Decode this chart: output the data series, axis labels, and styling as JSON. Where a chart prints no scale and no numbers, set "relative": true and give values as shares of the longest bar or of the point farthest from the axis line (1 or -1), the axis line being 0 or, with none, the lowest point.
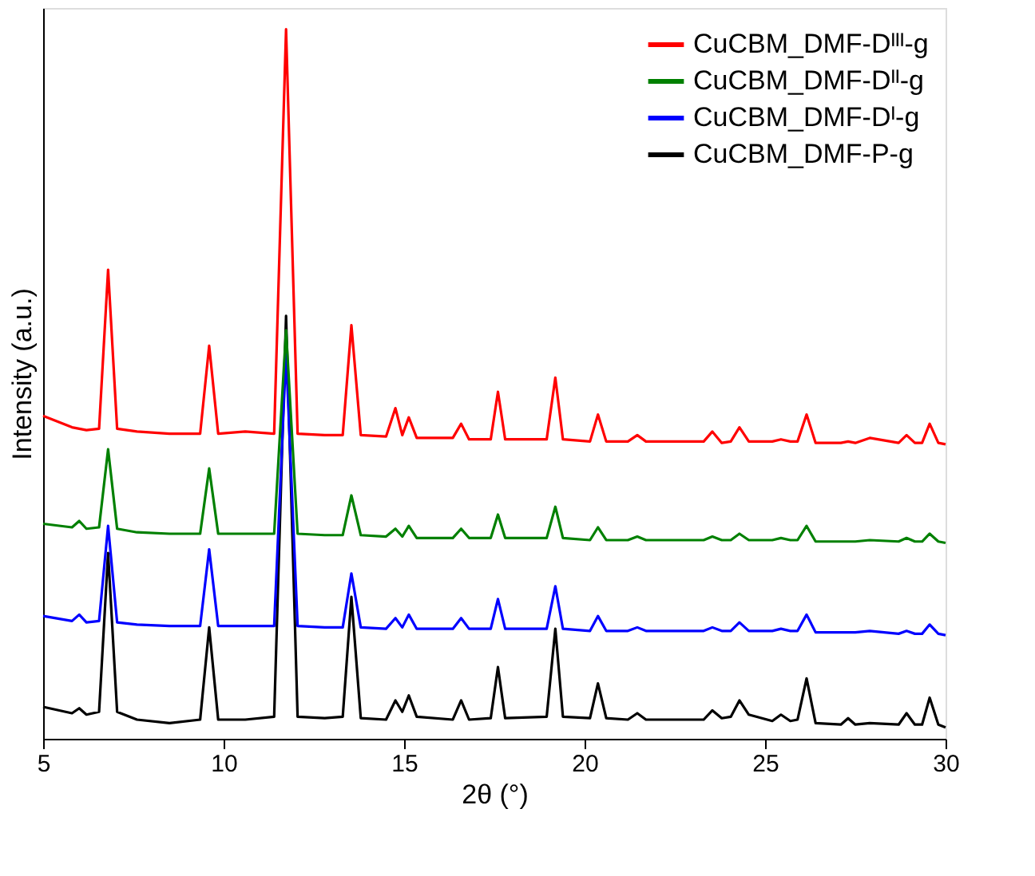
{
  "chart_data": {
    "type": "line",
    "relative": true,
    "xlabel": "2θ (°)",
    "ylabel": "Intensity (a.u.)",
    "xlim": [
      5,
      30
    ],
    "xticks": [
      5,
      10,
      15,
      20,
      25,
      30
    ],
    "legend": "top right",
    "x": [
      5.0,
      5.8,
      6.0,
      6.2,
      6.55,
      6.8,
      7.05,
      7.6,
      8.5,
      9.35,
      9.6,
      9.85,
      10.6,
      11.4,
      11.73,
      12.05,
      12.8,
      13.3,
      13.54,
      13.8,
      14.5,
      14.76,
      14.95,
      15.13,
      15.35,
      16.35,
      16.58,
      16.8,
      17.4,
      17.6,
      17.8,
      18.95,
      19.19,
      19.4,
      20.15,
      20.37,
      20.6,
      21.2,
      21.46,
      21.7,
      23.3,
      23.54,
      23.8,
      24.05,
      24.29,
      24.55,
      25.2,
      25.44,
      25.7,
      25.9,
      26.15,
      26.4,
      27.1,
      27.3,
      27.5,
      27.9,
      28.7,
      28.92,
      29.15,
      29.35,
      29.56,
      29.8,
      30.0
    ],
    "series": [
      {
        "name": "CuCBM_DMF-Dᴵᴵᴵ-g",
        "color": "#ff0000",
        "values": [
          0.455,
          0.439,
          0.437,
          0.435,
          0.437,
          0.661,
          0.437,
          0.433,
          0.43,
          0.43,
          0.554,
          0.43,
          0.433,
          0.43,
          1.0,
          0.43,
          0.428,
          0.428,
          0.583,
          0.428,
          0.426,
          0.466,
          0.428,
          0.453,
          0.424,
          0.424,
          0.444,
          0.422,
          0.422,
          0.489,
          0.422,
          0.422,
          0.509,
          0.422,
          0.419,
          0.457,
          0.419,
          0.419,
          0.428,
          0.419,
          0.419,
          0.433,
          0.417,
          0.419,
          0.439,
          0.419,
          0.419,
          0.422,
          0.419,
          0.419,
          0.457,
          0.417,
          0.417,
          0.419,
          0.417,
          0.424,
          0.417,
          0.428,
          0.417,
          0.417,
          0.444,
          0.417,
          0.415
        ]
      },
      {
        "name": "CuCBM_DMF-Dᴵᴵ-g",
        "color": "#008000",
        "values": [
          0.303,
          0.298,
          0.307,
          0.296,
          0.298,
          0.408,
          0.296,
          0.291,
          0.289,
          0.289,
          0.381,
          0.289,
          0.289,
          0.289,
          0.576,
          0.289,
          0.287,
          0.287,
          0.343,
          0.287,
          0.285,
          0.296,
          0.285,
          0.3,
          0.283,
          0.283,
          0.296,
          0.283,
          0.283,
          0.316,
          0.283,
          0.283,
          0.327,
          0.283,
          0.28,
          0.298,
          0.28,
          0.28,
          0.285,
          0.28,
          0.28,
          0.285,
          0.28,
          0.28,
          0.289,
          0.28,
          0.28,
          0.283,
          0.28,
          0.28,
          0.3,
          0.278,
          0.278,
          0.278,
          0.278,
          0.28,
          0.278,
          0.283,
          0.278,
          0.278,
          0.289,
          0.278,
          0.276
        ]
      },
      {
        "name": "CuCBM_DMF-Dᴵ-g",
        "color": "#0000ff",
        "values": [
          0.173,
          0.166,
          0.175,
          0.164,
          0.166,
          0.3,
          0.164,
          0.161,
          0.159,
          0.159,
          0.267,
          0.159,
          0.159,
          0.159,
          0.543,
          0.159,
          0.157,
          0.157,
          0.233,
          0.157,
          0.155,
          0.17,
          0.157,
          0.175,
          0.155,
          0.155,
          0.17,
          0.155,
          0.155,
          0.197,
          0.155,
          0.155,
          0.215,
          0.155,
          0.152,
          0.173,
          0.152,
          0.152,
          0.157,
          0.152,
          0.152,
          0.157,
          0.152,
          0.152,
          0.164,
          0.152,
          0.152,
          0.155,
          0.152,
          0.152,
          0.175,
          0.15,
          0.15,
          0.15,
          0.15,
          0.152,
          0.148,
          0.152,
          0.148,
          0.148,
          0.161,
          0.148,
          0.146
        ]
      },
      {
        "name": "CuCBM_DMF-P-g",
        "color": "#000000",
        "values": [
          0.045,
          0.036,
          0.043,
          0.034,
          0.038,
          0.262,
          0.038,
          0.027,
          0.022,
          0.027,
          0.157,
          0.027,
          0.027,
          0.031,
          0.596,
          0.031,
          0.029,
          0.031,
          0.2,
          0.029,
          0.027,
          0.054,
          0.038,
          0.061,
          0.031,
          0.027,
          0.054,
          0.027,
          0.029,
          0.101,
          0.029,
          0.031,
          0.155,
          0.031,
          0.029,
          0.078,
          0.029,
          0.027,
          0.036,
          0.027,
          0.027,
          0.04,
          0.029,
          0.031,
          0.054,
          0.034,
          0.025,
          0.034,
          0.025,
          0.027,
          0.085,
          0.022,
          0.02,
          0.029,
          0.02,
          0.022,
          0.02,
          0.036,
          0.02,
          0.02,
          0.058,
          0.02,
          0.016
        ]
      }
    ]
  }
}
